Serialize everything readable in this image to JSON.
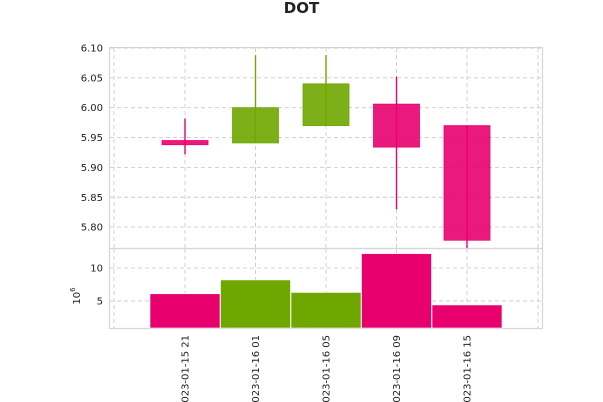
{
  "chart_data": {
    "type": "candlestick",
    "title": "DOT",
    "x": [
      "2023-01-15 21",
      "2023-01-16 01",
      "2023-01-16 05",
      "2023-01-16 09",
      "2023-01-16 15"
    ],
    "x_tick_labels": [
      "023-01-15 21",
      "023-01-16 01",
      "023-01-16 05",
      "023-01-16 09",
      "023-01-16 15"
    ],
    "price": {
      "open": [
        5.945,
        5.941,
        5.97,
        6.006,
        5.97
      ],
      "high": [
        5.982,
        6.088,
        6.088,
        6.052,
        5.97
      ],
      "low": [
        5.922,
        5.941,
        5.97,
        5.83,
        5.765
      ],
      "close": [
        5.938,
        6.0,
        6.04,
        5.934,
        5.778
      ],
      "ylim": [
        5.765,
        6.1
      ],
      "yticks": [
        "5.80",
        "5.85",
        "5.90",
        "5.95",
        "6.00",
        "6.05",
        "6.10"
      ]
    },
    "volume": {
      "values": [
        6.1,
        8.2,
        6.3,
        12.2,
        4.4
      ],
      "ylim": [
        0.9,
        12.9
      ],
      "yticks": [
        "5",
        "10"
      ],
      "scale_label": "10",
      "scale_exponent": "6"
    },
    "colors": {
      "up": "#6fa600",
      "down": "#e8006f"
    },
    "grid": true
  }
}
